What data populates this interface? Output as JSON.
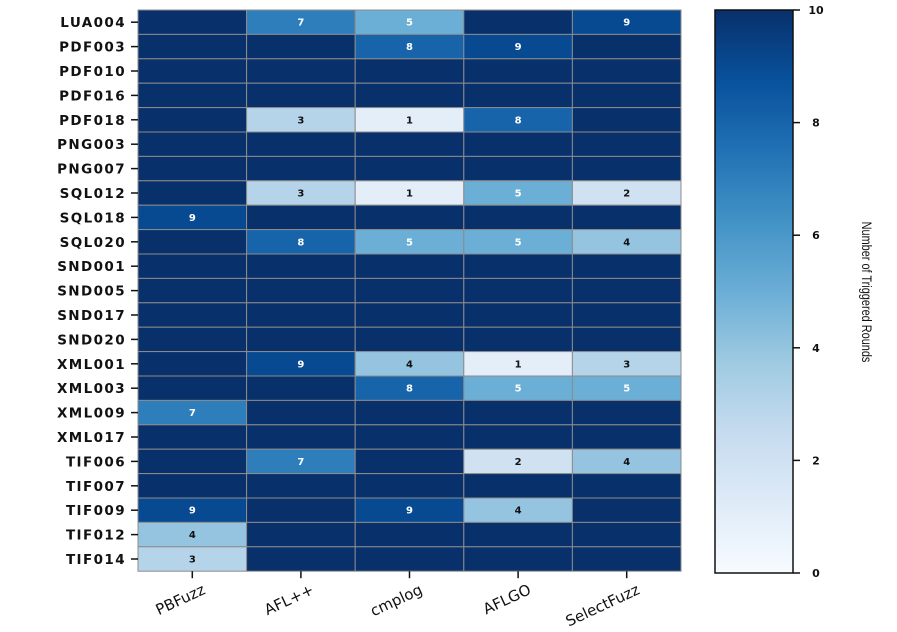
{
  "chart_data": {
    "type": "heatmap",
    "title": "",
    "xlabel": "",
    "ylabel": "",
    "rows": [
      "LUA004",
      "PDF003",
      "PDF010",
      "PDF016",
      "PDF018",
      "PNG003",
      "PNG007",
      "SQL012",
      "SQL018",
      "SQL020",
      "SND001",
      "SND005",
      "SND017",
      "SND020",
      "XML001",
      "XML003",
      "XML009",
      "XML017",
      "TIF006",
      "TIF007",
      "TIF009",
      "TIF012",
      "TIF014"
    ],
    "columns": [
      "PBFuzz",
      "AFL++",
      "cmplog",
      "AFLGO",
      "SelectFuzz"
    ],
    "values": [
      [
        10,
        7,
        5,
        10,
        9
      ],
      [
        10,
        10,
        8,
        9,
        10
      ],
      [
        10,
        10,
        10,
        10,
        10
      ],
      [
        10,
        10,
        10,
        10,
        10
      ],
      [
        10,
        3,
        1,
        8,
        10
      ],
      [
        10,
        10,
        10,
        10,
        10
      ],
      [
        10,
        10,
        10,
        10,
        10
      ],
      [
        10,
        3,
        1,
        5,
        2
      ],
      [
        9,
        10,
        10,
        10,
        10
      ],
      [
        10,
        8,
        5,
        5,
        4
      ],
      [
        10,
        10,
        10,
        10,
        10
      ],
      [
        10,
        10,
        10,
        10,
        10
      ],
      [
        10,
        10,
        10,
        10,
        10
      ],
      [
        10,
        10,
        10,
        10,
        10
      ],
      [
        10,
        9,
        4,
        1,
        3
      ],
      [
        10,
        10,
        8,
        5,
        5
      ],
      [
        7,
        10,
        10,
        10,
        10
      ],
      [
        10,
        10,
        10,
        10,
        10
      ],
      [
        10,
        7,
        10,
        2,
        4
      ],
      [
        10,
        10,
        10,
        10,
        10
      ],
      [
        9,
        10,
        9,
        4,
        10
      ],
      [
        4,
        10,
        10,
        10,
        10
      ],
      [
        3,
        10,
        10,
        10,
        10
      ]
    ],
    "annotate_below": 10,
    "colormap": "Blues",
    "vmin": 0,
    "vmax": 10,
    "colorbar": {
      "label": "Number of Triggered Rounds",
      "ticks": [
        0,
        2,
        4,
        6,
        8,
        10
      ]
    },
    "colors": {
      "low": "#f7fbff",
      "high": "#08306b",
      "grid": "#8c8c8c"
    }
  }
}
